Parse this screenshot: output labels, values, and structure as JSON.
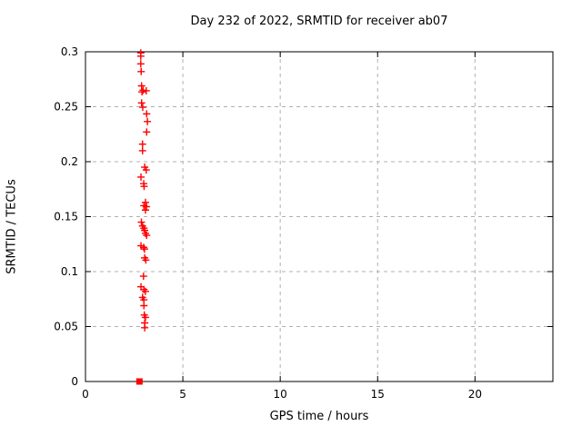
{
  "title": "Day 232 of 2022, SRMTID for receiver ab07",
  "colors": {
    "marker": "#ff0000",
    "grid": "#b0b0b0",
    "frame": "#000000",
    "background": "#ffffff",
    "text": "#000000"
  },
  "chart_data": {
    "type": "scatter",
    "title": "Day 232 of 2022, SRMTID for receiver ab07",
    "xlabel": "GPS time / hours",
    "ylabel": "SRMTID / TECUs",
    "xlim": [
      0,
      24
    ],
    "ylim": [
      0,
      0.3
    ],
    "xticks": [
      0,
      5,
      10,
      15,
      20
    ],
    "xtick_labels": [
      "0",
      "5",
      "10",
      "15",
      "20"
    ],
    "yticks": [
      0,
      0.05,
      0.1,
      0.15,
      0.2,
      0.25,
      0.3
    ],
    "ytick_labels": [
      "0",
      "0.05",
      "0.1",
      "0.15",
      "0.2",
      "0.25",
      "0.3"
    ],
    "grid": true,
    "grid_style": "dashed",
    "legend": "none",
    "series": [
      {
        "name": "SRMTID values",
        "marker": "plus",
        "color": "#ff0000",
        "points": [
          [
            2.84,
            0.299
          ],
          [
            2.84,
            0.296
          ],
          [
            2.84,
            0.289
          ],
          [
            2.86,
            0.282
          ],
          [
            2.88,
            0.269
          ],
          [
            2.96,
            0.265
          ],
          [
            3.12,
            0.2645
          ],
          [
            2.9,
            0.2635
          ],
          [
            2.88,
            0.2535
          ],
          [
            2.94,
            0.2495
          ],
          [
            3.14,
            0.2435
          ],
          [
            3.18,
            0.2365
          ],
          [
            3.14,
            0.227
          ],
          [
            2.93,
            0.216
          ],
          [
            2.93,
            0.21
          ],
          [
            3.04,
            0.195
          ],
          [
            3.12,
            0.1925
          ],
          [
            2.85,
            0.186
          ],
          [
            2.99,
            0.18
          ],
          [
            3.01,
            0.1775
          ],
          [
            3.08,
            0.163
          ],
          [
            3.0,
            0.16
          ],
          [
            3.13,
            0.159
          ],
          [
            3.08,
            0.156
          ],
          [
            2.87,
            0.145
          ],
          [
            2.93,
            0.1415
          ],
          [
            3.0,
            0.1395
          ],
          [
            3.04,
            0.1375
          ],
          [
            3.08,
            0.1348
          ],
          [
            3.14,
            0.133
          ],
          [
            2.85,
            0.1235
          ],
          [
            2.99,
            0.122
          ],
          [
            3.03,
            0.1205
          ],
          [
            3.04,
            0.1125
          ],
          [
            3.1,
            0.1105
          ],
          [
            2.98,
            0.0958
          ],
          [
            2.85,
            0.0862
          ],
          [
            3.0,
            0.0837
          ],
          [
            3.08,
            0.082
          ],
          [
            2.93,
            0.0765
          ],
          [
            3.0,
            0.0743
          ],
          [
            3.0,
            0.069
          ],
          [
            3.02,
            0.0605
          ],
          [
            3.08,
            0.0583
          ],
          [
            3.04,
            0.0533
          ],
          [
            3.04,
            0.0489
          ]
        ]
      },
      {
        "name": "zero marker",
        "marker": "square",
        "color": "#ff0000",
        "points": [
          [
            2.77,
            0.0
          ]
        ]
      }
    ]
  }
}
